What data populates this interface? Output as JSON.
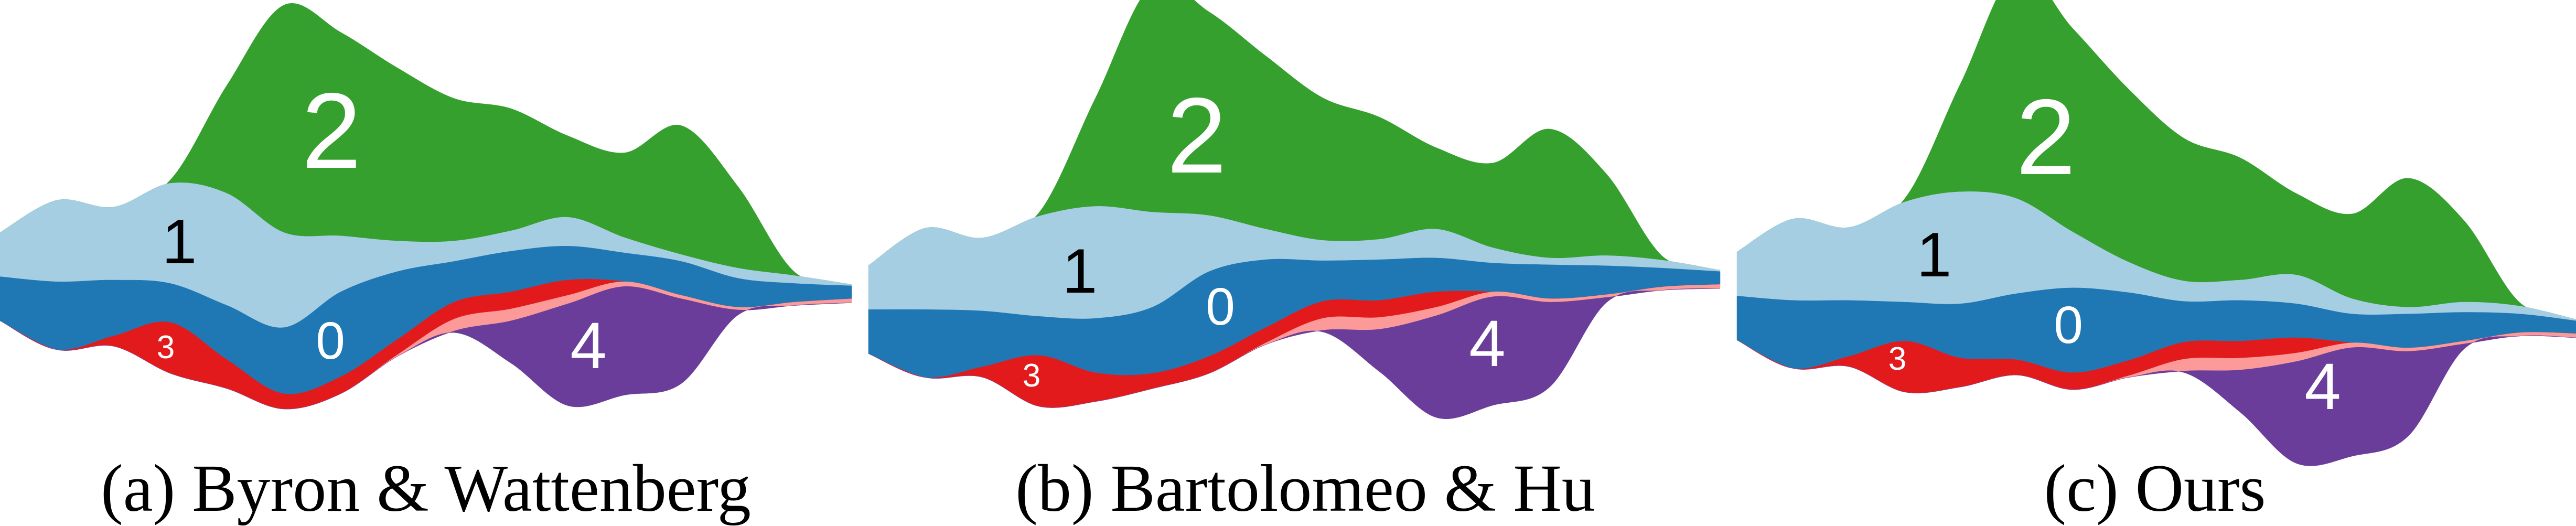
{
  "chart_data": [
    {
      "type": "area",
      "subtype": "streamgraph",
      "caption": "(a) Byron & Wattenberg",
      "x": [
        0,
        1,
        2,
        3,
        4,
        5,
        6,
        7,
        8,
        9,
        10,
        11,
        12,
        13,
        14,
        15
      ],
      "series_order_top_to_bottom": [
        "2",
        "1",
        "0",
        "3",
        "pink",
        "4"
      ],
      "layer0_top_line": [
        81.5,
        83,
        82.5,
        83.5,
        90,
        96.5,
        86,
        80,
        77,
        74,
        72.5,
        74.5,
        77,
        82,
        83.5,
        84.2
      ]
    },
    {
      "type": "area",
      "subtype": "streamgraph",
      "caption": "(b) Bartolomeo & Hu",
      "x": [
        0,
        1,
        2,
        3,
        4,
        5,
        6,
        7,
        8,
        9,
        10,
        11,
        12,
        13,
        14,
        15
      ],
      "series_order_top_to_bottom": [
        "2",
        "1",
        "0",
        "3",
        "pink",
        "4"
      ],
      "layer0_top_line": [
        91.2,
        91.2,
        91.6,
        93.2,
        93.8,
        90.5,
        80,
        76.5,
        76.8,
        76.5,
        76,
        77.5,
        78,
        78.3,
        79,
        80
      ]
    },
    {
      "type": "area",
      "subtype": "streamgraph",
      "caption": "(c) Ours",
      "x": [
        0,
        1,
        2,
        3,
        4,
        5,
        6,
        7,
        8,
        9,
        10,
        11,
        12,
        13,
        14,
        15
      ],
      "series_order_top_to_bottom": [
        "2",
        "1",
        "0",
        "3",
        "pink",
        "4"
      ],
      "layer0_top_line": [
        87.2,
        88.5,
        88.5,
        89,
        89.5,
        86.5,
        84.8,
        86.2,
        88.8,
        88.5,
        89.5,
        92.5,
        92.5,
        92,
        92.5,
        94.5
      ]
    }
  ],
  "series": [
    {
      "key": "0",
      "label": "0",
      "color": "#1f78b4",
      "label_color": "#ffffff",
      "values": [
        13,
        20,
        16.5,
        11.5,
        16,
        19.5,
        25,
        20,
        12,
        12,
        10,
        8.5,
        10,
        8.5,
        5.5,
        3.8
      ]
    },
    {
      "key": "1",
      "label": "1",
      "color": "#a6cee3",
      "label_color": "#000000",
      "values": [
        13,
        24,
        21.5,
        29.5,
        33,
        28,
        16.5,
        9,
        6,
        6,
        8.5,
        4.5,
        2,
        3,
        2.3,
        0.4
      ]
    },
    {
      "key": "2",
      "label": "2",
      "color": "#35a02d",
      "label_color": "#ffffff",
      "values": [
        0,
        0,
        0,
        1,
        32,
        67,
        60,
        51,
        42,
        36,
        24,
        25,
        38,
        24,
        1,
        0
      ]
    },
    {
      "key": "3",
      "label": "3",
      "color": "#e31a1c",
      "label_color": "#ffffff",
      "values": [
        0,
        0,
        3,
        15,
        8.5,
        4.5,
        5,
        4.5,
        5,
        5,
        4.5,
        0,
        0,
        0,
        0,
        0
      ]
    },
    {
      "key": "pink",
      "label": "",
      "color": "#fb9a99",
      "values": [
        0,
        0,
        0,
        0,
        0,
        0,
        0,
        0.5,
        3.5,
        3.5,
        2.5,
        1.4,
        1,
        0.8,
        1,
        1.2
      ]
    },
    {
      "key": "4",
      "label": "4",
      "color": "#6a3d9a",
      "label_color": "#ffffff",
      "values": [
        0,
        0,
        0,
        0,
        0,
        0,
        0,
        0,
        0.5,
        12.5,
        30,
        32,
        25,
        1.5,
        0,
        0
      ]
    }
  ]
}
